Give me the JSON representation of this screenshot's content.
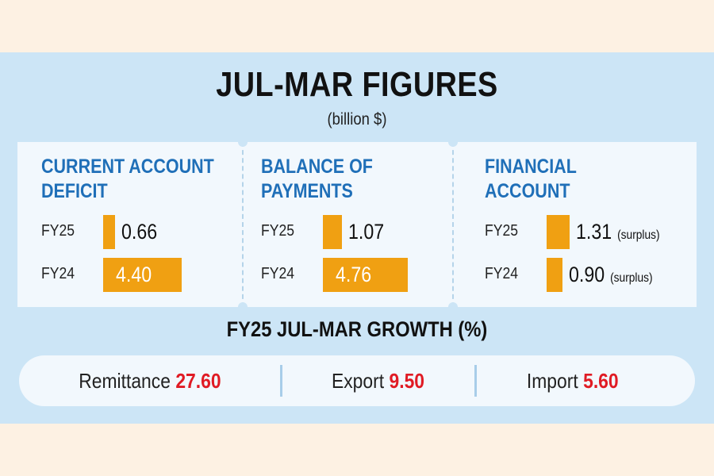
{
  "title": "JUL-MAR FIGURES",
  "subtitle": "(billion $)",
  "colors": {
    "bar": "#f0a012",
    "heading": "#1f6fb8",
    "highlight": "#e01b24",
    "panel": "#cce5f6"
  },
  "chart_data": [
    {
      "type": "bar",
      "title_lines": [
        "CURRENT ACCOUNT",
        "DEFICIT"
      ],
      "categories": [
        "FY25",
        "FY24"
      ],
      "values": [
        0.66,
        4.4
      ],
      "value_labels": [
        "0.66",
        "4.40"
      ],
      "notes": [
        "",
        ""
      ]
    },
    {
      "type": "bar",
      "title_lines": [
        "BALANCE OF",
        "PAYMENTS"
      ],
      "categories": [
        "FY25",
        "FY24"
      ],
      "values": [
        1.07,
        4.76
      ],
      "value_labels": [
        "1.07",
        "4.76"
      ],
      "notes": [
        "",
        ""
      ]
    },
    {
      "type": "bar",
      "title_lines": [
        "FINANCIAL",
        "ACCOUNT"
      ],
      "categories": [
        "FY25",
        "FY24"
      ],
      "values": [
        1.31,
        0.9
      ],
      "value_labels": [
        "1.31",
        "0.90"
      ],
      "notes": [
        "(surplus)",
        "(surplus)"
      ]
    }
  ],
  "growth": {
    "title": "FY25 JUL-MAR GROWTH (%)",
    "items": [
      {
        "label": "Remittance",
        "value": "27.60"
      },
      {
        "label": "Export",
        "value": "9.50"
      },
      {
        "label": "Import",
        "value": "5.60"
      }
    ]
  }
}
